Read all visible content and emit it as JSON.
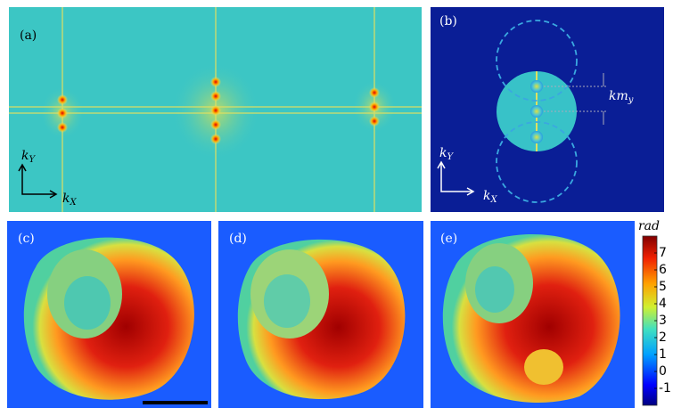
{
  "panels": [
    {
      "label": "(a)",
      "axes": {
        "y": {
          "base": "k",
          "sub": "Y"
        },
        "x": {
          "base": "k",
          "sub": "X"
        }
      }
    },
    {
      "label": "(b)",
      "axes": {
        "y": {
          "base": "k",
          "sub": "Y"
        },
        "x": {
          "base": "k",
          "sub": "X"
        }
      },
      "annotation": {
        "base": "km",
        "sub": "y"
      }
    },
    {
      "label": "(c)"
    },
    {
      "label": "(d)"
    },
    {
      "label": "(e)"
    }
  ],
  "colorbar": {
    "label": "rad",
    "lim": [
      -2,
      8
    ],
    "ticks": [
      -1,
      0,
      1,
      2,
      3,
      4,
      5,
      6,
      7
    ]
  }
}
